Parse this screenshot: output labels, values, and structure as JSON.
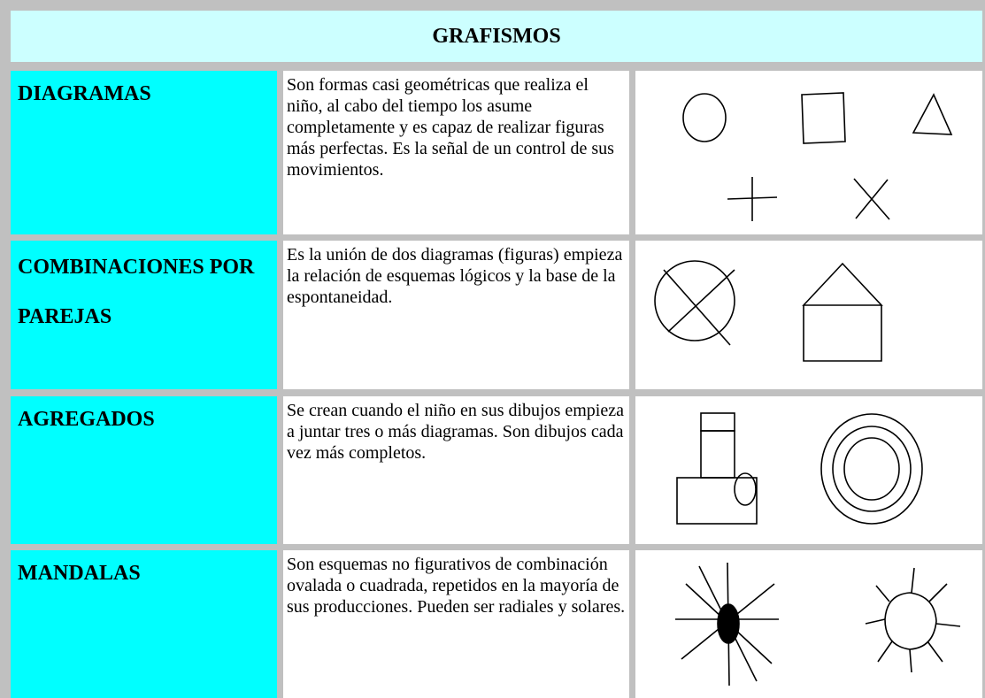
{
  "header": {
    "title": "GRAFISMOS"
  },
  "table": {
    "rows": [
      [
        "DIAGRAMAS",
        "Son formas casi geométricas que realiza el niño, al cabo del tiempo los asume completamente y es capaz de realizar figuras más perfectas. Es la señal de un control de sus movimientos."
      ],
      [
        "COMBINACIONES POR PAREJAS",
        "Es la unión de dos diagramas (figuras) empieza la relación de esquemas lógicos y la base de la espontaneidad."
      ],
      [
        "AGREGADOS",
        "Se crean cuando el niño en sus dibujos empieza a juntar tres o más diagramas. Son dibujos cada vez más completos."
      ],
      [
        "MANDALAS",
        "Son esquemas no figurativos de combinación ovalada o cuadrada, repetidos en la mayoría de sus producciones. Pueden ser radiales y solares."
      ]
    ]
  }
}
